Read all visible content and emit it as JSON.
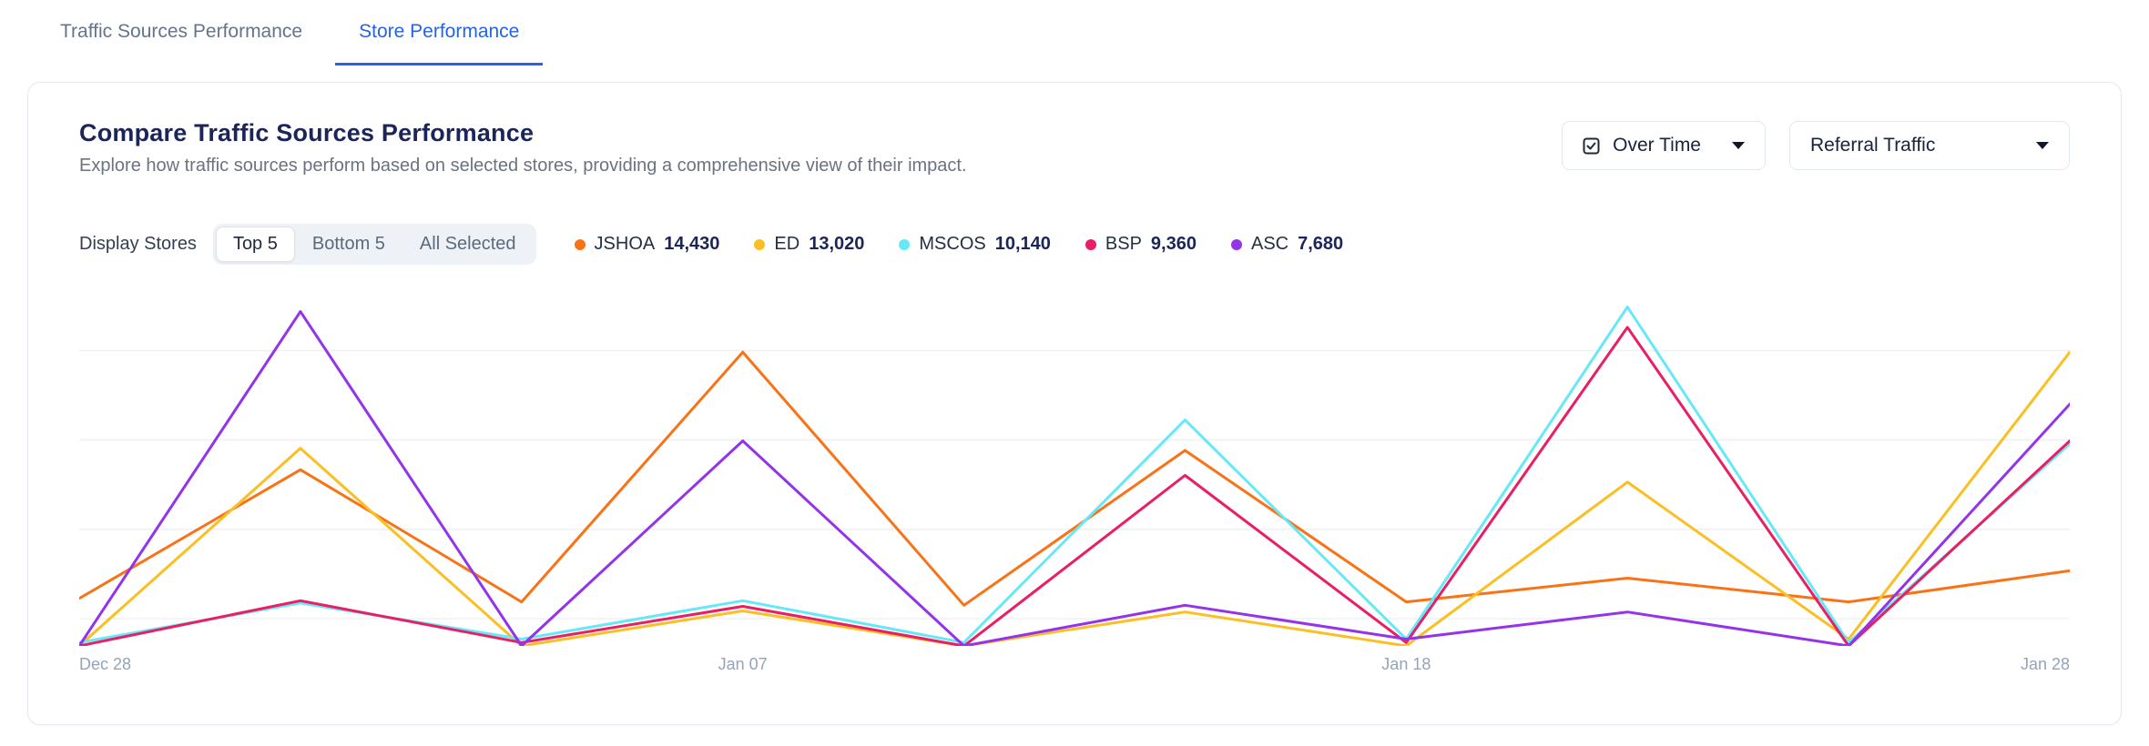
{
  "tabs": [
    {
      "label": "Traffic Sources Performance",
      "active": false
    },
    {
      "label": "Store Performance",
      "active": true
    }
  ],
  "card": {
    "title": "Compare Traffic Sources Performance",
    "subtitle": "Explore how traffic sources perform based on selected stores, providing a comprehensive view of their impact.",
    "dropdowns": [
      {
        "label": "Over Time",
        "icon": "checkbox-icon"
      },
      {
        "label": "Referral Traffic"
      }
    ],
    "display_stores": {
      "label": "Display Stores",
      "options": [
        "Top 5",
        "Bottom 5",
        "All Selected"
      ],
      "selected": "Top 5"
    },
    "legend": [
      {
        "name": "JSHOA",
        "value": "14,430",
        "color": "#f97316"
      },
      {
        "name": "ED",
        "value": "13,020",
        "color": "#fbbf24"
      },
      {
        "name": "MSCOS",
        "value": "10,140",
        "color": "#67e8f9"
      },
      {
        "name": "BSP",
        "value": "9,360",
        "color": "#e91e63"
      },
      {
        "name": "ASC",
        "value": "7,680",
        "color": "#9333ea"
      }
    ]
  },
  "chart_data": {
    "type": "line",
    "title": "Compare Traffic Sources Performance",
    "xlabel": "",
    "ylabel": "",
    "grid": true,
    "legend_position": "top",
    "num_points": 10,
    "x_labels": [
      "Dec 28",
      "Jan 07",
      "Jan 18",
      "Jan 28"
    ],
    "x_label_positions": [
      0,
      3,
      6,
      9
    ],
    "ylim": [
      0,
      3100
    ],
    "series": [
      {
        "name": "JSHOA",
        "color": "#f97316",
        "values": [
          420,
          1560,
          390,
          2600,
          360,
          1730,
          390,
          600,
          390,
          665
        ]
      },
      {
        "name": "ED",
        "color": "#fbbf24",
        "values": [
          0,
          1750,
          0,
          310,
          0,
          300,
          0,
          1450,
          60,
          2600
        ]
      },
      {
        "name": "MSCOS",
        "color": "#67e8f9",
        "values": [
          30,
          380,
          60,
          400,
          30,
          2000,
          60,
          3000,
          30,
          1790
        ]
      },
      {
        "name": "BSP",
        "color": "#e91e63",
        "values": [
          0,
          400,
          30,
          350,
          0,
          1510,
          30,
          2820,
          0,
          1815
        ]
      },
      {
        "name": "ASC",
        "color": "#9333ea",
        "values": [
          0,
          2960,
          0,
          1815,
          0,
          360,
          60,
          300,
          0,
          2140
        ]
      }
    ]
  }
}
